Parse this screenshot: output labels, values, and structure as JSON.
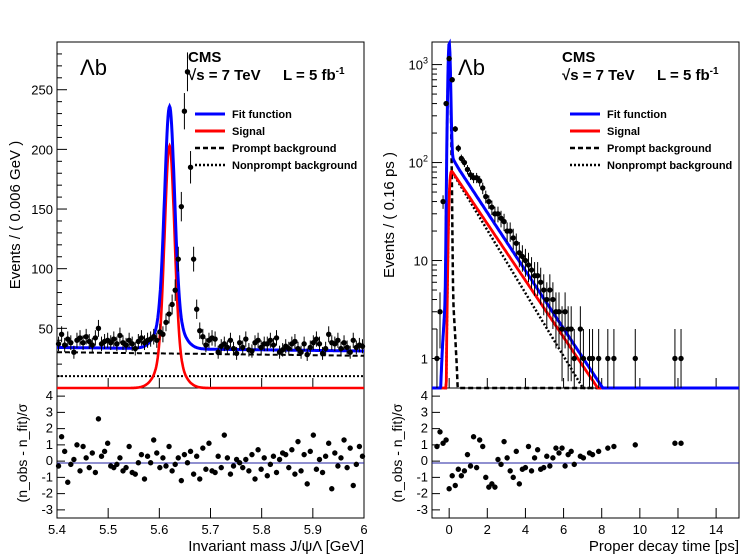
{
  "chart_data": [
    {
      "type": "line",
      "panel": "mass",
      "label": "Λb",
      "experiment": "CMS",
      "energy": "√s = 7 TeV",
      "lumi_text": "L = 5 fb",
      "lumi_sup": "-1",
      "ylabel": "Events / ( 0.006 GeV )",
      "xlabel": "Invariant mass J/ψΛ [GeV]",
      "pull_ylabel": "(n_obs - n_fit)/σ",
      "xlim": [
        5.4,
        6.0
      ],
      "ylim": [
        0,
        290
      ],
      "xticks": [
        "5.4",
        "5.5",
        "5.6",
        "5.7",
        "5.8",
        "5.9",
        "6"
      ],
      "yticks": [
        "50",
        "100",
        "150",
        "200",
        "250"
      ],
      "pull_ylim": [
        -3.5,
        4.5
      ],
      "pull_yticks": [
        "-3",
        "-2",
        "-1",
        "0",
        "1",
        "2",
        "3",
        "4"
      ],
      "legend": [
        {
          "name": "Fit function",
          "color": "#0000ff",
          "style": "solid"
        },
        {
          "name": "Signal",
          "color": "#ff0000",
          "style": "solid"
        },
        {
          "name": "Prompt background",
          "color": "#000000",
          "style": "dashed"
        },
        {
          "name": "Nonprompt background",
          "color": "#000000",
          "style": "dotted"
        }
      ],
      "model": {
        "peak": 5.62,
        "sigma": 0.0095,
        "signal_amp": 203,
        "prompt_bkg": [
          30,
          27
        ],
        "nonprompt_bkg": 10
      },
      "data_x": [
        5.403,
        5.409,
        5.415,
        5.421,
        5.427,
        5.433,
        5.439,
        5.445,
        5.451,
        5.457,
        5.463,
        5.469,
        5.475,
        5.481,
        5.487,
        5.493,
        5.499,
        5.505,
        5.511,
        5.517,
        5.523,
        5.529,
        5.535,
        5.541,
        5.547,
        5.553,
        5.559,
        5.565,
        5.571,
        5.577,
        5.583,
        5.589,
        5.595,
        5.601,
        5.607,
        5.613,
        5.619,
        5.625,
        5.631,
        5.637,
        5.643,
        5.649,
        5.655,
        5.661,
        5.667,
        5.673,
        5.679,
        5.685,
        5.691,
        5.697,
        5.703,
        5.709,
        5.715,
        5.721,
        5.727,
        5.733,
        5.739,
        5.745,
        5.751,
        5.757,
        5.763,
        5.769,
        5.775,
        5.781,
        5.787,
        5.793,
        5.799,
        5.805,
        5.811,
        5.817,
        5.823,
        5.829,
        5.835,
        5.841,
        5.847,
        5.853,
        5.859,
        5.865,
        5.871,
        5.877,
        5.883,
        5.889,
        5.895,
        5.901,
        5.907,
        5.913,
        5.919,
        5.925,
        5.931,
        5.937,
        5.943,
        5.949,
        5.955,
        5.961,
        5.967,
        5.973,
        5.979,
        5.985,
        5.991,
        5.997
      ],
      "data_y": [
        37,
        45,
        36,
        41,
        38,
        30,
        40,
        42,
        38,
        43,
        39,
        36,
        42,
        50,
        37,
        39,
        40,
        38,
        41,
        37,
        44,
        38,
        36,
        40,
        37,
        33,
        39,
        42,
        38,
        40,
        41,
        43,
        40,
        47,
        45,
        55,
        62,
        70,
        82,
        108,
        152,
        232,
        265,
        185,
        108,
        66,
        48,
        43,
        36,
        40,
        42,
        41,
        30,
        35,
        37,
        34,
        40,
        33,
        29,
        38,
        34,
        41,
        32,
        31,
        38,
        40,
        34,
        37,
        37,
        40,
        36,
        42,
        30,
        32,
        35,
        33,
        37,
        39,
        33,
        30,
        37,
        28,
        34,
        38,
        41,
        37,
        29,
        33,
        45,
        38,
        37,
        40,
        33,
        38,
        34,
        30,
        40,
        34,
        36,
        35
      ],
      "pull_x": [
        5.403,
        5.409,
        5.415,
        5.421,
        5.427,
        5.433,
        5.439,
        5.445,
        5.451,
        5.457,
        5.463,
        5.469,
        5.475,
        5.481,
        5.487,
        5.493,
        5.499,
        5.505,
        5.511,
        5.517,
        5.523,
        5.529,
        5.535,
        5.541,
        5.547,
        5.553,
        5.559,
        5.565,
        5.571,
        5.577,
        5.583,
        5.589,
        5.595,
        5.601,
        5.607,
        5.613,
        5.619,
        5.625,
        5.631,
        5.637,
        5.643,
        5.649,
        5.655,
        5.661,
        5.667,
        5.673,
        5.679,
        5.685,
        5.691,
        5.697,
        5.703,
        5.709,
        5.715,
        5.721,
        5.727,
        5.733,
        5.739,
        5.745,
        5.751,
        5.757,
        5.763,
        5.769,
        5.775,
        5.781,
        5.787,
        5.793,
        5.799,
        5.805,
        5.811,
        5.817,
        5.823,
        5.829,
        5.835,
        5.841,
        5.847,
        5.853,
        5.859,
        5.865,
        5.871,
        5.877,
        5.883,
        5.889,
        5.895,
        5.901,
        5.907,
        5.913,
        5.919,
        5.925,
        5.931,
        5.937,
        5.943,
        5.949,
        5.955,
        5.961,
        5.967,
        5.973,
        5.979,
        5.985,
        5.991,
        5.997
      ],
      "pull_y": [
        -0.3,
        1.5,
        0.6,
        -1.3,
        -0.2,
        0.1,
        1.0,
        -0.6,
        0.9,
        0.2,
        -0.4,
        0.5,
        -0.7,
        2.6,
        0.3,
        0.6,
        1.1,
        -0.3,
        -0.4,
        -0.2,
        0.2,
        -0.6,
        -0.4,
        0.9,
        -0.7,
        -0.8,
        -0.1,
        0.4,
        -1.1,
        0.3,
        -0.1,
        1.3,
        0.5,
        -0.4,
        0.2,
        -0.3,
        0.9,
        -0.6,
        -0.2,
        0.2,
        -1.2,
        0.4,
        -0.1,
        0.6,
        -0.8,
        0.3,
        -1.1,
        0.8,
        -0.5,
        1.1,
        -0.6,
        -0.7,
        0.3,
        -0.4,
        1.6,
        0.2,
        -0.8,
        -0.3,
        0.1,
        -0.1,
        -0.4,
        0.1,
        -0.6,
        0.4,
        -1.1,
        0.7,
        -0.5,
        0.2,
        -0.9,
        -0.2,
        0.3,
        -0.7,
        0.1,
        0.5,
        0.4,
        -0.4,
        0.7,
        -0.8,
        1.2,
        -0.6,
        0.4,
        -1.4,
        0.6,
        1.6,
        -0.5,
        0.1,
        -0.7,
        0.3,
        1.1,
        -1.7,
        0.5,
        -0.3,
        0.2,
        1.3,
        -0.4,
        0.8,
        -1.5,
        -0.2,
        0.9,
        0.3
      ]
    },
    {
      "type": "line",
      "panel": "decay-time",
      "label": "Λb",
      "experiment": "CMS",
      "energy": "√s = 7 TeV",
      "lumi_text": "L = 5 fb",
      "lumi_sup": "-1",
      "ylabel": "Events / ( 0.16 ps )",
      "xlabel": "Proper decay time [ps]",
      "pull_ylabel": "(n_obs - n_fit)/σ",
      "xlim": [
        -0.9,
        15.2
      ],
      "ylog": [
        0.5,
        1700
      ],
      "xticks": [
        "0",
        "2",
        "4",
        "6",
        "8",
        "10",
        "12",
        "14"
      ],
      "yticks": [
        {
          "v": 1,
          "main": "1",
          "sup": ""
        },
        {
          "v": 10,
          "main": "10",
          "sup": ""
        },
        {
          "v": 100,
          "main": "10",
          "sup": "2"
        },
        {
          "v": 1000,
          "main": "10",
          "sup": "3"
        }
      ],
      "pull_ylim": [
        -3.5,
        4.5
      ],
      "pull_yticks": [
        "-3",
        "-2",
        "-1",
        "0",
        "1",
        "2",
        "3",
        "4"
      ],
      "legend": [
        {
          "name": "Fit function",
          "color": "#0000ff",
          "style": "solid"
        },
        {
          "name": "Signal",
          "color": "#ff0000",
          "style": "solid"
        },
        {
          "name": "Prompt background",
          "color": "#000000",
          "style": "dashed"
        },
        {
          "name": "Nonprompt background",
          "color": "#000000",
          "style": "dotted"
        }
      ],
      "model": {
        "prompt_amp": 1600,
        "prompt_sigma": 0.055,
        "signal_amp": 90,
        "signal_tau": 1.5,
        "nonprompt_amp": 90,
        "nonprompt_tau": 1.35
      },
      "data_x": [
        -0.64,
        -0.48,
        -0.32,
        -0.16,
        0.0,
        0.16,
        0.32,
        0.48,
        0.64,
        0.8,
        0.96,
        1.12,
        1.28,
        1.44,
        1.6,
        1.76,
        1.92,
        2.08,
        2.24,
        2.4,
        2.56,
        2.72,
        2.88,
        3.04,
        3.2,
        3.36,
        3.52,
        3.68,
        3.84,
        4.0,
        4.16,
        4.32,
        4.48,
        4.64,
        4.8,
        4.96,
        5.12,
        5.28,
        5.44,
        5.6,
        5.76,
        5.92,
        6.08,
        6.24,
        6.4,
        6.56,
        6.88,
        7.04,
        7.36,
        7.52,
        7.84,
        8.32,
        8.64,
        9.76,
        11.84,
        12.16
      ],
      "data_y": [
        1,
        3,
        40,
        400,
        1150,
        700,
        220,
        140,
        110,
        100,
        85,
        75,
        70,
        70,
        65,
        55,
        45,
        40,
        35,
        30,
        30,
        27,
        25,
        20,
        20,
        17,
        15,
        12,
        11,
        10,
        9,
        8,
        7,
        7,
        6,
        5,
        4,
        5,
        4,
        3,
        3,
        2,
        3,
        2,
        2,
        1,
        2,
        1,
        1,
        1,
        1,
        1,
        1,
        1,
        1,
        1
      ],
      "pull_x": [
        -0.64,
        -0.48,
        -0.32,
        -0.16,
        0.0,
        0.16,
        0.32,
        0.48,
        0.64,
        0.8,
        0.96,
        1.12,
        1.28,
        1.44,
        1.6,
        1.76,
        1.92,
        2.08,
        2.24,
        2.4,
        2.56,
        2.72,
        2.88,
        3.04,
        3.2,
        3.36,
        3.52,
        3.68,
        3.84,
        4.0,
        4.16,
        4.32,
        4.48,
        4.64,
        4.8,
        4.96,
        5.12,
        5.28,
        5.44,
        5.6,
        5.76,
        5.92,
        6.08,
        6.24,
        6.4,
        6.56,
        6.88,
        7.04,
        7.36,
        7.52,
        7.84,
        8.32,
        8.64,
        9.76,
        11.84,
        12.16
      ],
      "pull_y": [
        0.9,
        1.8,
        1.1,
        1.3,
        -1.7,
        -0.9,
        -1.5,
        -0.5,
        -0.9,
        -0.6,
        0.4,
        -0.3,
        1.5,
        -0.4,
        1.3,
        0.9,
        -1.0,
        -1.6,
        -1.4,
        -1.6,
        0.1,
        -0.2,
        1.2,
        0.2,
        -0.6,
        -1.0,
        0.6,
        -1.4,
        -0.5,
        -0.4,
        0.9,
        -0.6,
        0.2,
        0.7,
        -0.5,
        -0.4,
        0.3,
        -0.3,
        0.2,
        0.8,
        0.5,
        0.8,
        -0.3,
        0.4,
        0.6,
        -0.2,
        0.3,
        0.2,
        0.5,
        0.4,
        0.6,
        0.8,
        0.9,
        1.0,
        1.1,
        1.1
      ]
    }
  ]
}
